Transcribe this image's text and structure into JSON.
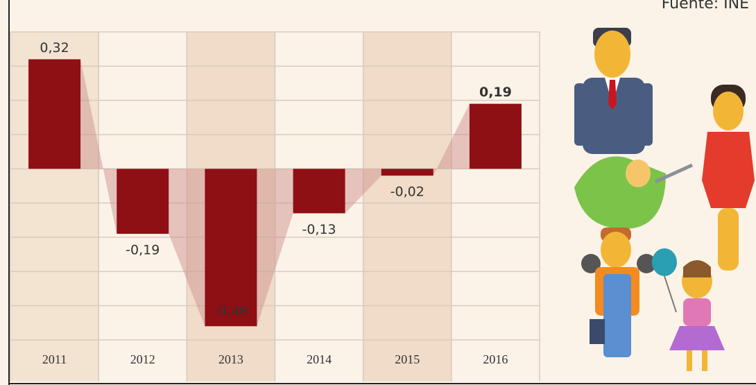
{
  "chart_data": {
    "type": "bar",
    "source": "Fuente: INE",
    "categories": [
      "2011",
      "2012",
      "2013",
      "2014",
      "2015",
      "2016"
    ],
    "values": [
      0.32,
      -0.19,
      -0.46,
      -0.13,
      -0.02,
      0.19
    ],
    "value_labels": [
      "0,32",
      "-0,19",
      "-0,46",
      "-0,13",
      "-0,02",
      "0,19"
    ],
    "color": "#8e0f14",
    "ylim": [
      -0.5,
      0.4
    ],
    "yticks": [
      -0.5,
      -0.4,
      -0.3,
      -0.2,
      -0.1,
      0,
      0.1,
      0.2,
      0.3,
      0.4
    ],
    "grid": true
  }
}
